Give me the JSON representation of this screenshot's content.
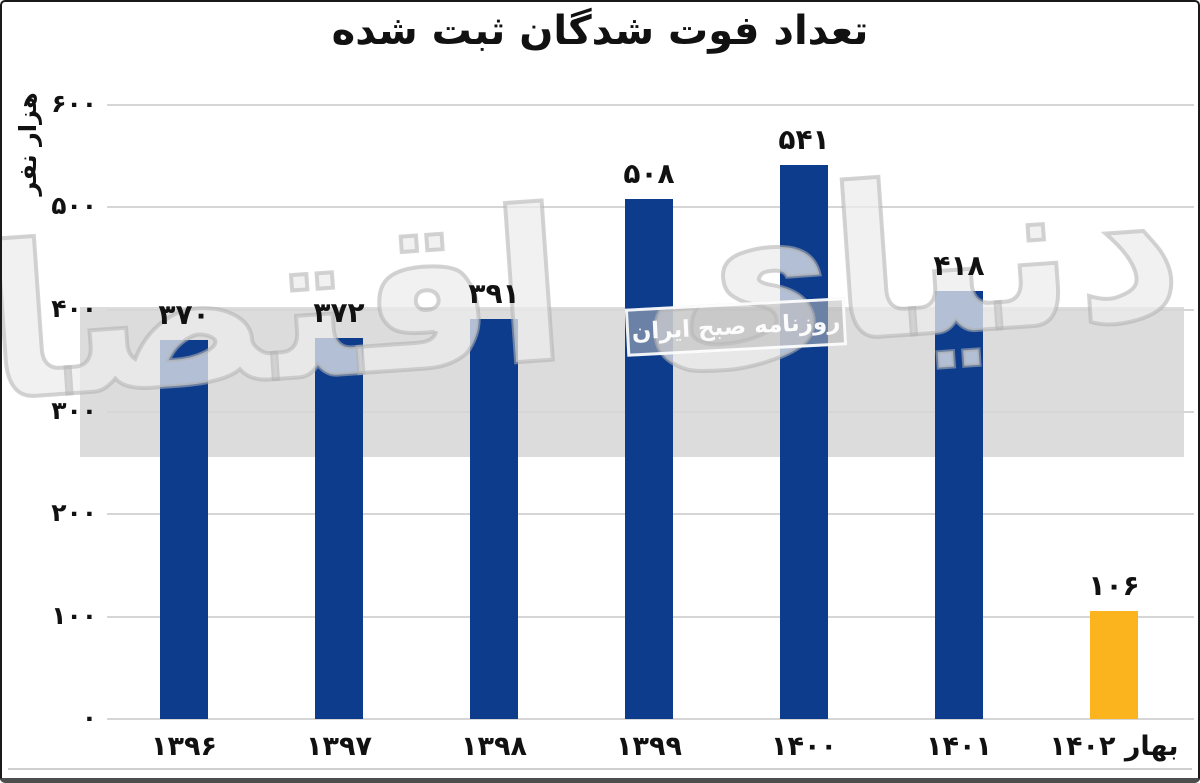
{
  "chart_data": {
    "type": "bar",
    "title": "تعداد فوت شدگان ثبت شده",
    "xlabel": "",
    "ylabel": "هزار نفر",
    "ylim": [
      0,
      600
    ],
    "grid": true,
    "legend": "none",
    "categories": [
      "۱۳۹۶",
      "۱۳۹۷",
      "۱۳۹۸",
      "۱۳۹۹",
      "۱۴۰۰",
      "۱۴۰۱",
      "بهار ۱۴۰۲"
    ],
    "categories_latin": [
      "1396",
      "1397",
      "1398",
      "1399",
      "1400",
      "1401",
      "Spring 1402"
    ],
    "values": [
      370,
      372,
      391,
      508,
      541,
      418,
      106
    ],
    "value_labels": [
      "۳۷۰",
      "۳۷۲",
      "۳۹۱",
      "۵۰۸",
      "۵۴۱",
      "۴۱۸",
      "۱۰۶"
    ],
    "yticks": [
      0,
      100,
      200,
      300,
      400,
      500,
      600
    ],
    "ytick_labels": [
      "۰",
      "۱۰۰",
      "۲۰۰",
      "۳۰۰",
      "۴۰۰",
      "۵۰۰",
      "۶۰۰"
    ],
    "bar_colors": [
      "#0d3c8c",
      "#0d3c8c",
      "#0d3c8c",
      "#0d3c8c",
      "#0d3c8c",
      "#0d3c8c",
      "#fbb31e"
    ]
  },
  "watermark": {
    "main_text": "دنیای اقتصاد",
    "badge_text": "روزنامه صبح ایران"
  },
  "colors": {
    "bar_blue": "#0d3c8c",
    "bar_orange": "#fbb31e",
    "band_gray": "#dcdcdc",
    "gridline": "#d6d6d6",
    "text": "#111111",
    "frame_border": "#1a1a1a"
  }
}
